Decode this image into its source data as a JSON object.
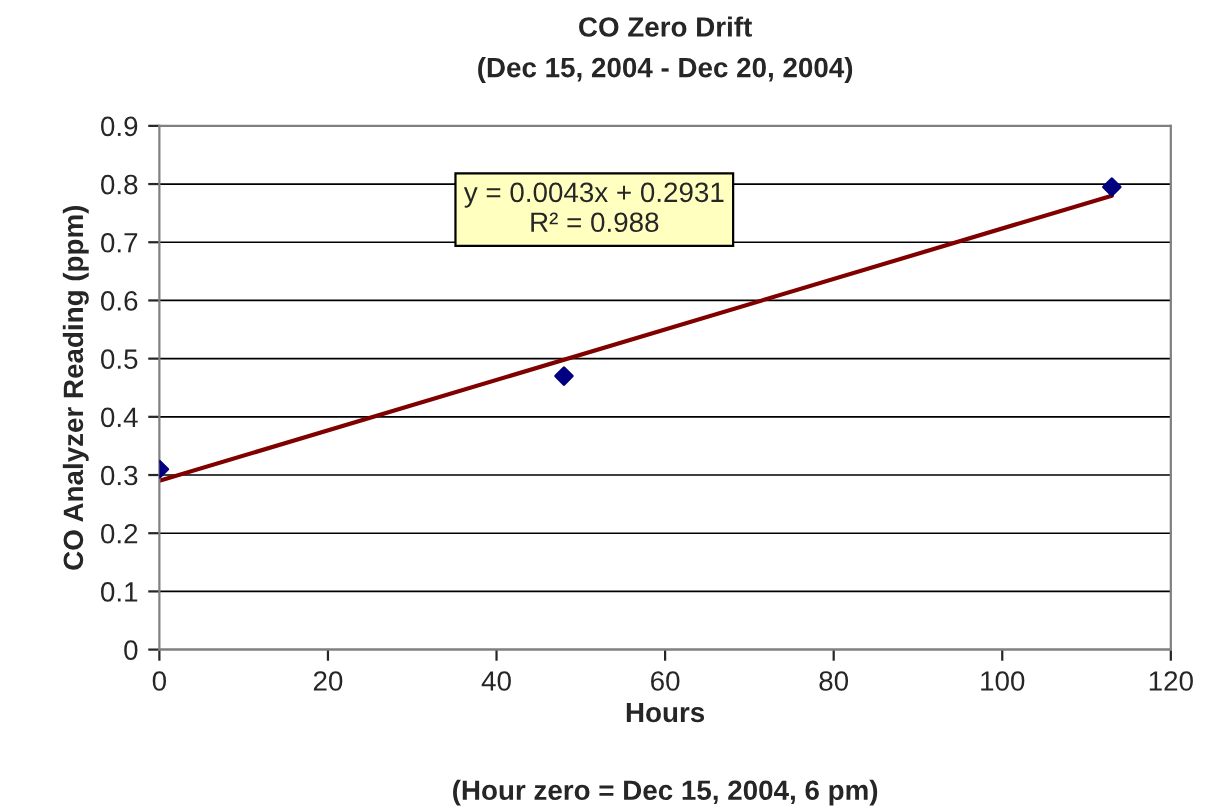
{
  "chart_data": {
    "type": "scatter",
    "title": "CO Zero Drift",
    "subtitle": "(Dec 15, 2004 - Dec 20, 2004)",
    "xlabel": "Hours",
    "ylabel": "CO Analyzer Reading (ppm)",
    "annotations": [
      "y = 0.0043x + 0.2931\nR² = 0.988",
      "(Hour zero = Dec 15, 2004, 6 pm)"
    ],
    "series": [
      {
        "color": "#000080",
        "x": [
          0,
          48,
          113
        ],
        "values": [
          0.31,
          0.47,
          0.795
        ],
        "marker": "diamond"
      },
      {
        "type": "line",
        "color": "#800000",
        "x": [
          0,
          113
        ],
        "values": [
          0.29,
          0.78
        ],
        "marker": "none",
        "line_style": "solid"
      }
    ],
    "xlim": [
      0,
      120
    ],
    "xticks": [
      0,
      20,
      40,
      60,
      80,
      100,
      120
    ],
    "ylim": [
      0,
      0.9
    ],
    "yticks": [
      0,
      0.1,
      0.2,
      0.3,
      0.4,
      0.5,
      0.6,
      0.7,
      0.8,
      0.9
    ],
    "grid": "y",
    "legend": false
  }
}
